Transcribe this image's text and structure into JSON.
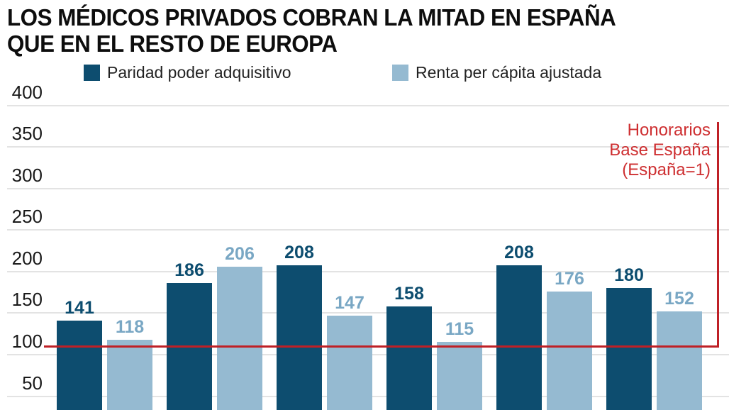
{
  "title": {
    "line1": "LOS MÉDICOS PRIVADOS COBRAN LA MITAD EN ESPAÑA",
    "line2": "QUE EN EL RESTO DE EUROPA"
  },
  "legend": [
    {
      "label": "Paridad poder adquisitivo",
      "color": "#0d4d6f"
    },
    {
      "label": "Renta per cápita ajustada",
      "color": "#95bad1"
    }
  ],
  "annotation": {
    "line1": "Honorarios",
    "line2": "Base España",
    "line3": "(España=1)"
  },
  "colors": {
    "dark_series": "#0d4d6f",
    "light_series": "#95bad1",
    "light_series_label": "#79a7c4",
    "reference_red": "#bf2026",
    "annotation_red": "#ce2f31",
    "gridline": "#e3e3e3",
    "text": "#1a1a1a"
  },
  "chart_data": {
    "type": "bar",
    "title": "LOS MÉDICOS PRIVADOS COBRAN LA MITAD EN ESPAÑA QUE EN EL RESTO DE EUROPA",
    "categories": [
      "",
      "",
      "",
      "",
      "",
      ""
    ],
    "series": [
      {
        "name": "Paridad poder adquisitivo",
        "color": "#0d4d6f",
        "label_color": "#0d4d6f",
        "values": [
          141,
          186,
          208,
          158,
          208,
          180
        ]
      },
      {
        "name": "Renta per cápita ajustada",
        "color": "#95bad1",
        "label_color": "#79a7c4",
        "values": [
          118,
          206,
          147,
          115,
          176,
          152
        ]
      }
    ],
    "yticks": [
      400,
      350,
      300,
      250,
      200,
      150,
      100,
      50
    ],
    "ylim": [
      0,
      400
    ],
    "grid": true,
    "legend_position": "top",
    "reference_line": {
      "value": 100,
      "label": "Honorarios Base España (España=1)",
      "color": "#bf2026"
    },
    "bottom_cut_off": true
  }
}
